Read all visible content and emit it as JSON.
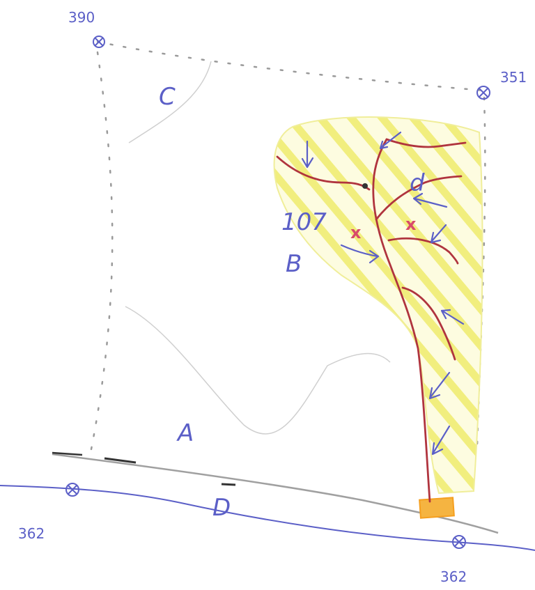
{
  "colors": {
    "boundary": "#9a9a9a",
    "catchment_hatch": "#f3f08a",
    "stream": "#b0343e",
    "annotation": "#5b5fc7",
    "outlet": "#f5a623",
    "marker_x": "#d84a6a"
  },
  "elevations": {
    "top_left": "390",
    "top_right": "351",
    "bottom_left": "362",
    "bottom_right": "362"
  },
  "zones": {
    "a": "A",
    "b": "B",
    "c": "C",
    "d": "D",
    "catchment_number": "107"
  },
  "stream_label": "d",
  "markers": [
    "x",
    "x"
  ]
}
